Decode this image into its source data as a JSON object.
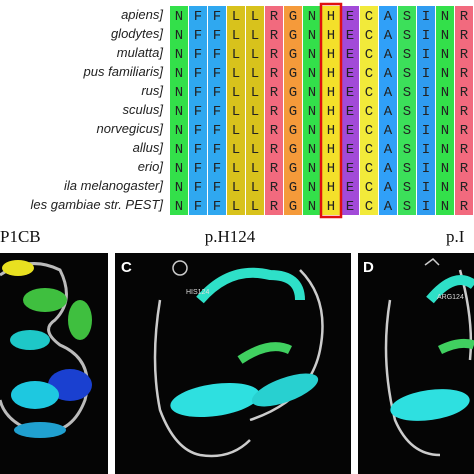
{
  "alignment": {
    "species": [
      "apiens]",
      "glodytes]",
      "mulatta]",
      "pus familiaris]",
      "rus]",
      "sculus]",
      "norvegicus]",
      "allus]",
      "erio]",
      "ila melanogaster]",
      "les gambiae str. PEST]"
    ],
    "residues": [
      "N",
      "F",
      "F",
      "L",
      "L",
      "R",
      "G",
      "N",
      "H",
      "E",
      "C",
      "A",
      "S",
      "I",
      "N",
      "R"
    ],
    "colors": {
      "N": "#33e04a",
      "F": "#2fa8f0",
      "L": "#d8c21c",
      "R": "#f26a7e",
      "G": "#f59a3a",
      "H": "#f4e02a",
      "E": "#a24ad8",
      "C": "#f2ea3a",
      "A": "#30a0f8",
      "S": "#3ce05a",
      "I": "#2f9cf0"
    },
    "highlight": 8
  },
  "panels": {
    "titles": [
      "P1CB",
      "p.H124",
      "p.I"
    ],
    "letters": [
      "C",
      "D"
    ],
    "residue_labels": [
      "HIS124",
      "ARG124"
    ]
  }
}
